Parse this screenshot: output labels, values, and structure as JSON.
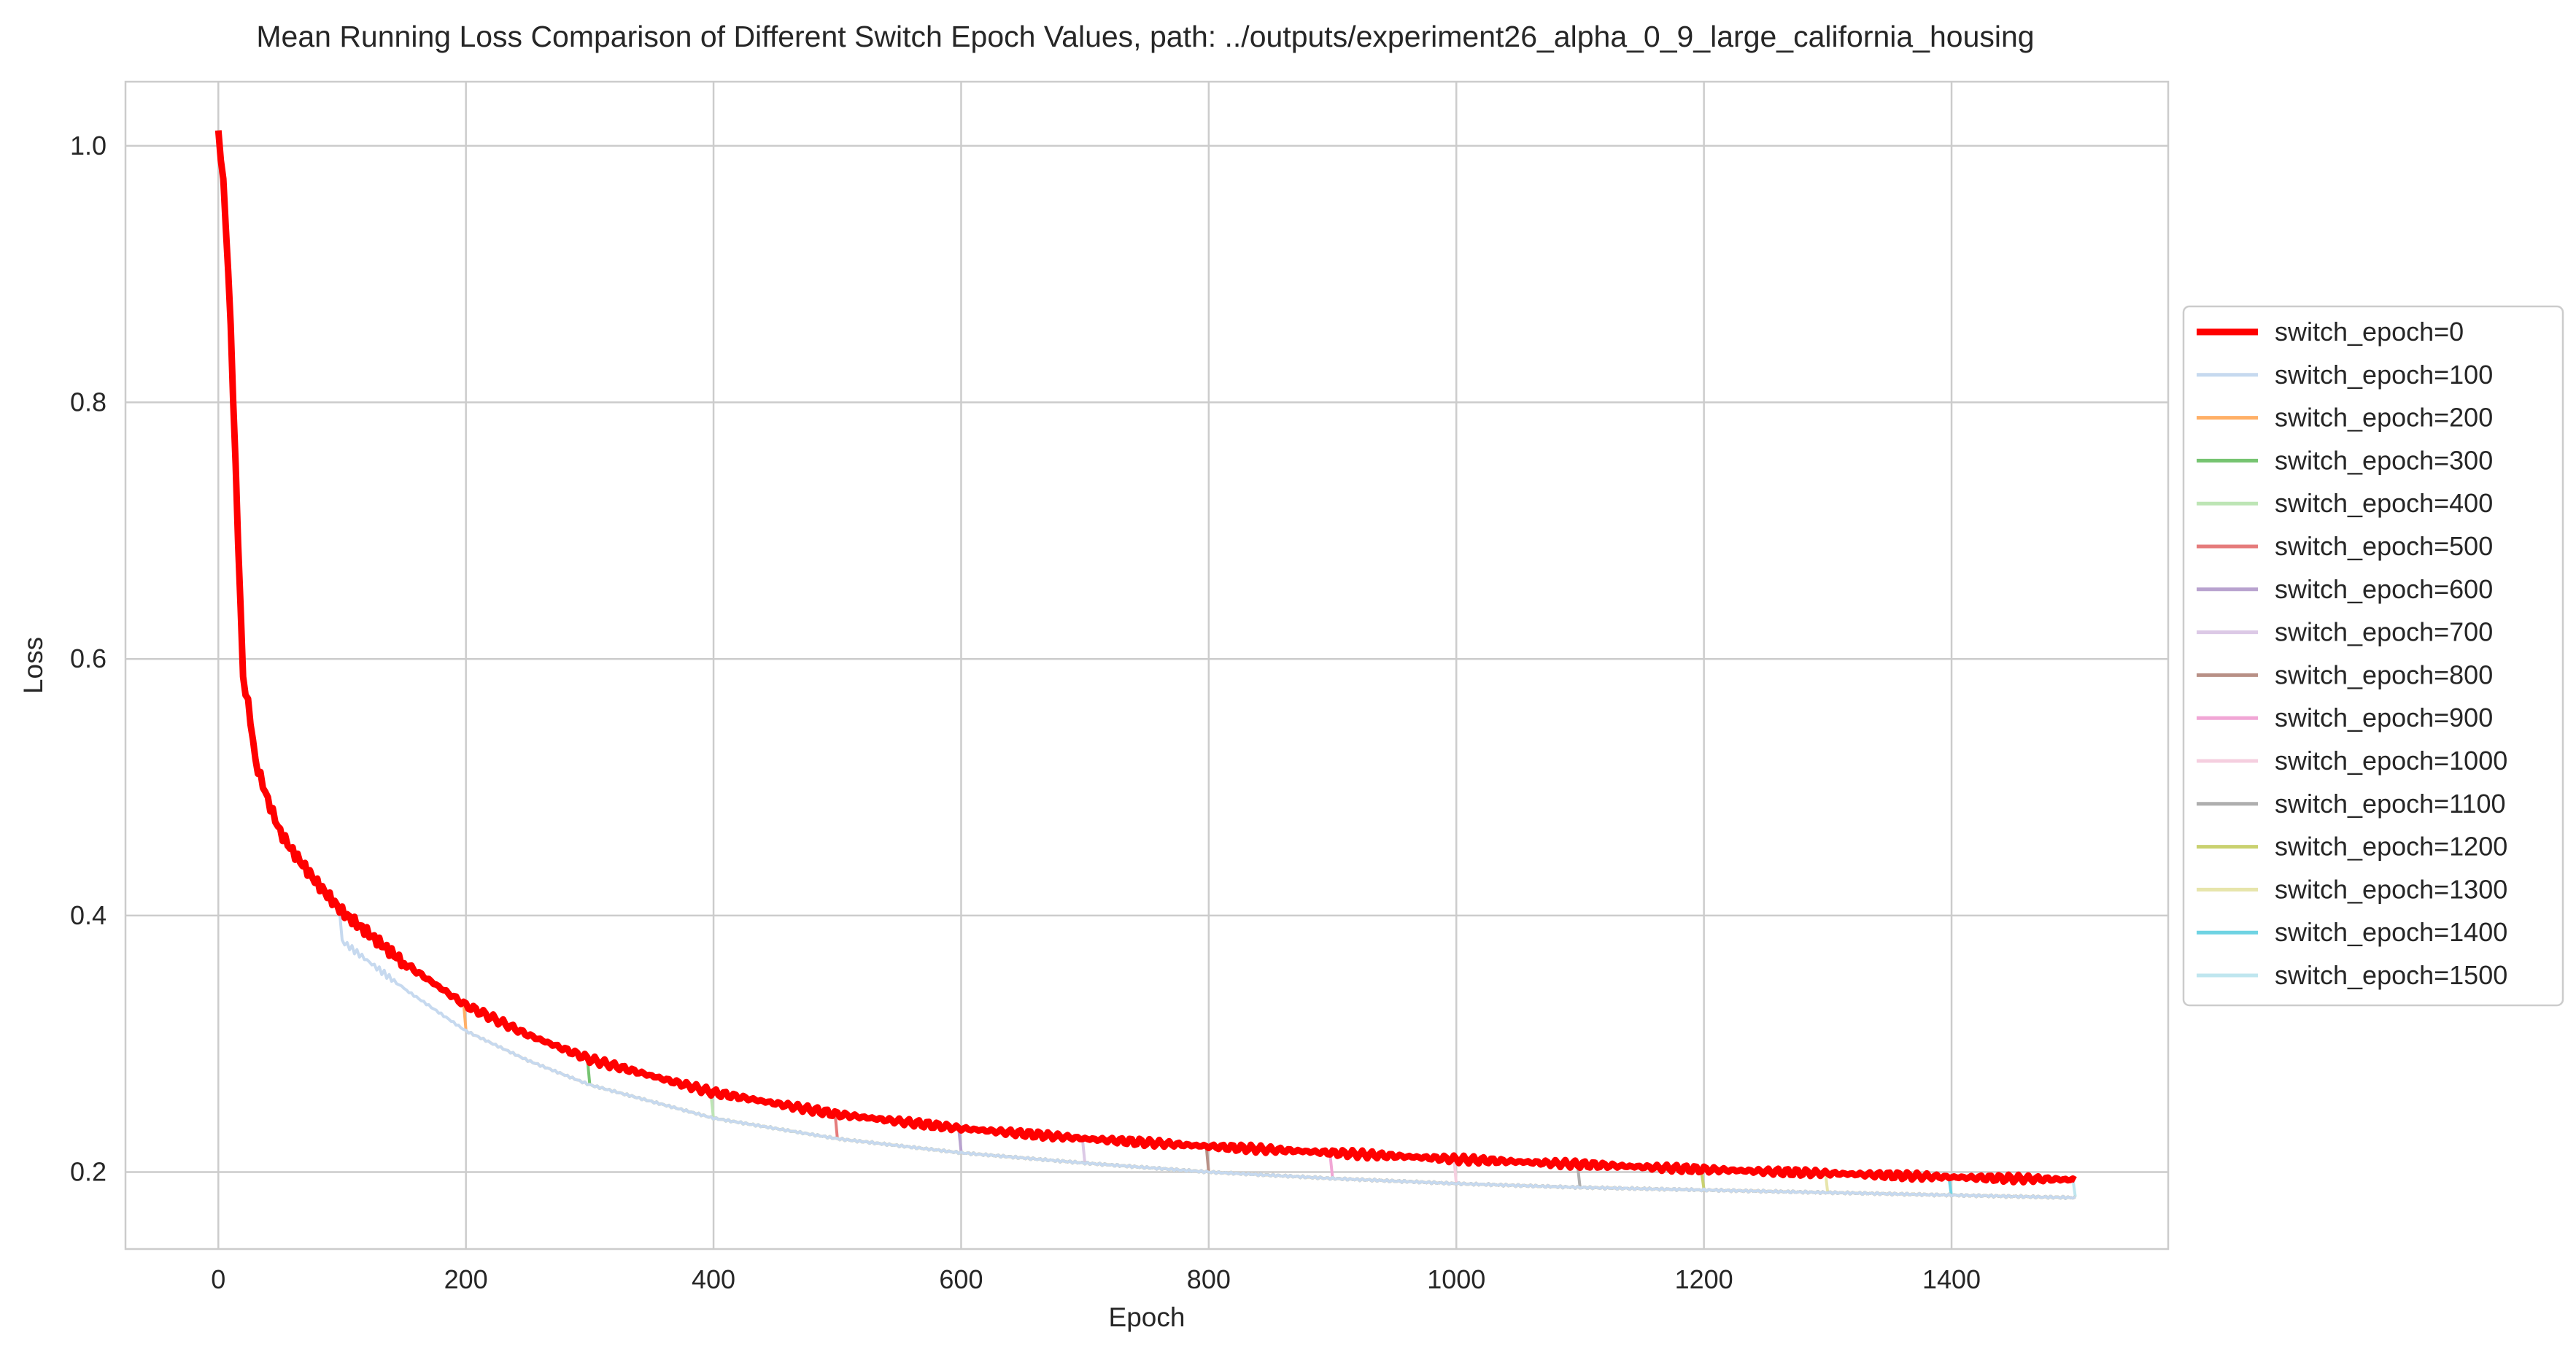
{
  "chart_data": {
    "type": "line",
    "title": "Mean Running Loss Comparison of Different Switch Epoch Values, path: ../outputs/experiment26_alpha_0_9_large_california_housing",
    "xlabel": "Epoch",
    "ylabel": "Loss",
    "xlim": [
      -75,
      1575
    ],
    "ylim": [
      0.14,
      1.05
    ],
    "xticks": [
      0,
      200,
      400,
      600,
      800,
      1000,
      1200,
      1400
    ],
    "yticks": [
      0.2,
      0.4,
      0.6,
      0.8,
      1.0
    ],
    "xtick_labels": [
      "0",
      "200",
      "400",
      "600",
      "800",
      "1000",
      "1200",
      "1400"
    ],
    "ytick_labels": [
      "0.2",
      "0.4",
      "0.6",
      "0.8",
      "1.0"
    ],
    "grid": true,
    "legend_position": "right (outside plot area)",
    "base_curve": {
      "name": "switch_epoch=0",
      "color": "#ff0000",
      "x": [
        0,
        5,
        10,
        15,
        20,
        25,
        30,
        40,
        50,
        60,
        80,
        100,
        150,
        200,
        250,
        300,
        400,
        500,
        600,
        700,
        800,
        900,
        1000,
        1100,
        1200,
        1300,
        1400,
        1500
      ],
      "values": [
        1.012,
        0.96,
        0.86,
        0.72,
        0.585,
        0.56,
        0.52,
        0.49,
        0.465,
        0.45,
        0.425,
        0.403,
        0.363,
        0.33,
        0.307,
        0.288,
        0.262,
        0.245,
        0.234,
        0.226,
        0.22,
        0.215,
        0.21,
        0.206,
        0.202,
        0.199,
        0.196,
        0.194
      ]
    },
    "switched_curve": {
      "x": [
        0,
        5,
        10,
        15,
        20,
        25,
        30,
        40,
        50,
        60,
        80,
        100,
        150,
        200,
        250,
        300,
        400,
        500,
        600,
        700,
        800,
        900,
        1000,
        1100,
        1200,
        1300,
        1400,
        1500
      ],
      "values": [
        0.985,
        0.93,
        0.8,
        0.65,
        0.56,
        0.535,
        0.5,
        0.465,
        0.44,
        0.425,
        0.4,
        0.38,
        0.343,
        0.31,
        0.287,
        0.268,
        0.242,
        0.226,
        0.215,
        0.207,
        0.2,
        0.195,
        0.191,
        0.188,
        0.186,
        0.184,
        0.182,
        0.18
      ]
    },
    "series": [
      {
        "name": "switch_epoch=0",
        "color": "#ff0000",
        "switch_epoch": 0
      },
      {
        "name": "switch_epoch=100",
        "color": "#c6d9ef",
        "switch_epoch": 100
      },
      {
        "name": "switch_epoch=200",
        "color": "#ffaf66",
        "switch_epoch": 200
      },
      {
        "name": "switch_epoch=300",
        "color": "#76c471",
        "switch_epoch": 300
      },
      {
        "name": "switch_epoch=400",
        "color": "#bde5b5",
        "switch_epoch": 400
      },
      {
        "name": "switch_epoch=500",
        "color": "#e57b7b",
        "switch_epoch": 500
      },
      {
        "name": "switch_epoch=600",
        "color": "#b8a2cf",
        "switch_epoch": 600
      },
      {
        "name": "switch_epoch=700",
        "color": "#dcc9e6",
        "switch_epoch": 700
      },
      {
        "name": "switch_epoch=800",
        "color": "#b89086",
        "switch_epoch": 800
      },
      {
        "name": "switch_epoch=900",
        "color": "#f1a6d5",
        "switch_epoch": 900
      },
      {
        "name": "switch_epoch=1000",
        "color": "#f5cfdf",
        "switch_epoch": 1000
      },
      {
        "name": "switch_epoch=1100",
        "color": "#aeaeae",
        "switch_epoch": 1100
      },
      {
        "name": "switch_epoch=1200",
        "color": "#c9d16f",
        "switch_epoch": 1200
      },
      {
        "name": "switch_epoch=1300",
        "color": "#e7e5ab",
        "switch_epoch": 1300
      },
      {
        "name": "switch_epoch=1400",
        "color": "#6fd3e3",
        "switch_epoch": 1400
      },
      {
        "name": "switch_epoch=1500",
        "color": "#bfe6ef",
        "switch_epoch": 1500
      }
    ]
  }
}
